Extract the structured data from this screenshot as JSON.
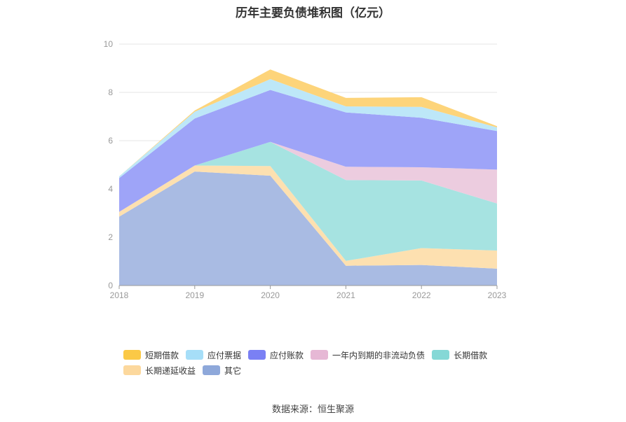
{
  "title": "历年主要负债堆积图（亿元）",
  "source": "数据来源：恒生聚源",
  "chart_data": {
    "type": "area",
    "stacked": true,
    "categories": [
      "2018",
      "2019",
      "2020",
      "2021",
      "2022",
      "2023"
    ],
    "ylim": [
      0,
      10
    ],
    "yticks": [
      0,
      2,
      4,
      6,
      8,
      10
    ],
    "grid": true,
    "legend_position": "bottom",
    "series": [
      {
        "name": "其它",
        "color": "#a9bbe3",
        "values": [
          2.85,
          4.72,
          4.55,
          0.82,
          0.85,
          0.7
        ]
      },
      {
        "name": "长期递延收益",
        "color": "#fde0b0",
        "values": [
          0.2,
          0.25,
          0.4,
          0.2,
          0.7,
          0.75
        ]
      },
      {
        "name": "长期借款",
        "color": "#a6e3e1",
        "values": [
          0.0,
          0.0,
          1.0,
          3.35,
          2.8,
          1.95
        ]
      },
      {
        "name": "一年内到期的非流动负债",
        "color": "#ecccdf",
        "values": [
          0.0,
          0.0,
          0.0,
          0.55,
          0.55,
          1.4
        ]
      },
      {
        "name": "应付账款",
        "color": "#9ea4f8",
        "values": [
          1.4,
          1.95,
          2.15,
          2.25,
          2.05,
          1.6
        ]
      },
      {
        "name": "应付票据",
        "color": "#bde7f8",
        "values": [
          0.07,
          0.28,
          0.45,
          0.25,
          0.45,
          0.15
        ]
      },
      {
        "name": "短期借款",
        "color": "#fdd47a",
        "values": [
          0.0,
          0.05,
          0.4,
          0.35,
          0.4,
          0.05
        ]
      }
    ],
    "legend": [
      {
        "name": "短期借款",
        "color": "#fbc946"
      },
      {
        "name": "应付票据",
        "color": "#a6def8"
      },
      {
        "name": "应付账款",
        "color": "#7a80f4"
      },
      {
        "name": "一年内到期的非流动负债",
        "color": "#e6b8d5"
      },
      {
        "name": "长期借款",
        "color": "#85d8d6"
      },
      {
        "name": "长期递延收益",
        "color": "#fcd89d"
      },
      {
        "name": "其它",
        "color": "#8ea8da"
      }
    ]
  }
}
